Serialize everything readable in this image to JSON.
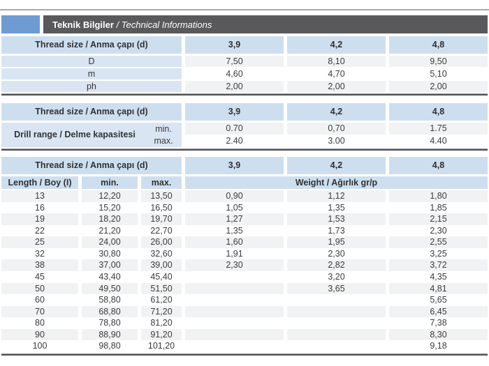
{
  "header": {
    "title_bold": "Teknik Bilgiler",
    "title_sep": " / ",
    "title_italic": "Technical Informations"
  },
  "colors": {
    "brand_blue": "#6e9bd2",
    "title_bar_gray": "#59595b",
    "header_cell_blue": "#cddfef",
    "label_cell_blue": "#d9e5f2",
    "stripe_gray": "#f1f2f3",
    "rule_dark": "#515257"
  },
  "shared": {
    "thread_header_label": "Thread size / Anma çapı (d)",
    "thread_sizes": [
      "3,9",
      "4,2",
      "4,8"
    ]
  },
  "table1": {
    "rows": [
      {
        "label": "D",
        "values": [
          "7,50",
          "8,10",
          "9,50"
        ]
      },
      {
        "label": "m",
        "values": [
          "4,60",
          "4,70",
          "5,10"
        ]
      },
      {
        "label": "ph",
        "values": [
          "2,00",
          "2,00",
          "2,00"
        ]
      }
    ]
  },
  "table2": {
    "label": "Drill range / Delme kapasitesi",
    "min_label": "min.",
    "max_label": "max.",
    "min_values": [
      "0.70",
      "0,70",
      "1.75"
    ],
    "max_values": [
      "2.40",
      "3.00",
      "4.40"
    ]
  },
  "table3": {
    "length_label": "Length / Boy (I)",
    "min_label": "min.",
    "max_label": "max.",
    "weight_label": "Weight / Ağırlık gr/p",
    "rows": [
      {
        "length": "13",
        "min": "12,20",
        "max": "13,50",
        "w": [
          "0,90",
          "1,12",
          "1,80"
        ]
      },
      {
        "length": "16",
        "min": "15,20",
        "max": "16,50",
        "w": [
          "1,05",
          "1,35",
          "1,85"
        ]
      },
      {
        "length": "19",
        "min": "18,20",
        "max": "19,70",
        "w": [
          "1,27",
          "1,53",
          "2,15"
        ]
      },
      {
        "length": "22",
        "min": "21,20",
        "max": "22,70",
        "w": [
          "1,35",
          "1,73",
          "2,30"
        ]
      },
      {
        "length": "25",
        "min": "24,00",
        "max": "26,00",
        "w": [
          "1,60",
          "1,95",
          "2,55"
        ]
      },
      {
        "length": "32",
        "min": "30,80",
        "max": "32,60",
        "w": [
          "1,91",
          "2,30",
          "3,25"
        ]
      },
      {
        "length": "38",
        "min": "37,00",
        "max": "39,00",
        "w": [
          "2,30",
          "2,82",
          "3,72"
        ]
      },
      {
        "length": "45",
        "min": "43,40",
        "max": "45,40",
        "w": [
          "",
          "3,20",
          "4,35"
        ]
      },
      {
        "length": "50",
        "min": "49,50",
        "max": "51,50",
        "w": [
          "",
          "3,65",
          "4,81"
        ]
      },
      {
        "length": "60",
        "min": "58,80",
        "max": "61,20",
        "w": [
          "",
          "",
          "5,65"
        ]
      },
      {
        "length": "70",
        "min": "68,80",
        "max": "71,20",
        "w": [
          "",
          "",
          "6,45"
        ]
      },
      {
        "length": "80",
        "min": "78,80",
        "max": "81,20",
        "w": [
          "",
          "",
          "7,38"
        ]
      },
      {
        "length": "90",
        "min": "88,90",
        "max": "91,20",
        "w": [
          "",
          "",
          "8,30"
        ]
      },
      {
        "length": "100",
        "min": "98,80",
        "max": "101,20",
        "w": [
          "",
          "",
          "9,18"
        ]
      }
    ]
  }
}
